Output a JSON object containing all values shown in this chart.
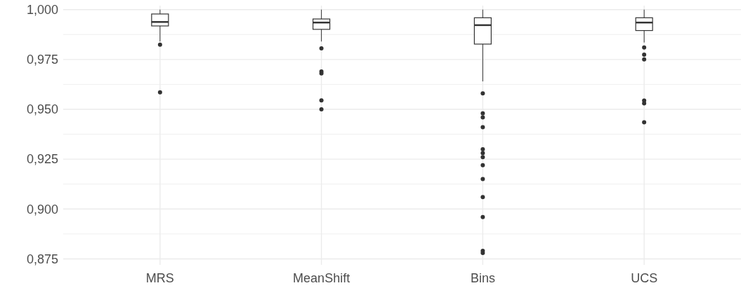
{
  "chart_data": {
    "type": "box",
    "categories": [
      "MRS",
      "MeanShift",
      "Bins",
      "UCS"
    ],
    "boxes": [
      {
        "low": 0.984,
        "q1": 0.9918,
        "median": 0.9938,
        "q3": 0.9978,
        "high": 1.0,
        "outliers": [
          0.9824,
          0.9585
        ]
      },
      {
        "low": 0.984,
        "q1": 0.9901,
        "median": 0.9935,
        "q3": 0.9953,
        "high": 1.0,
        "outliers": [
          0.9806,
          0.969,
          0.968,
          0.9545,
          0.95
        ]
      },
      {
        "low": 0.964,
        "q1": 0.9827,
        "median": 0.9922,
        "q3": 0.9959,
        "high": 1.0,
        "outliers": [
          0.958,
          0.948,
          0.946,
          0.941,
          0.93,
          0.928,
          0.926,
          0.922,
          0.915,
          0.906,
          0.896,
          0.879,
          0.878
        ]
      },
      {
        "low": 0.9835,
        "q1": 0.9895,
        "median": 0.9935,
        "q3": 0.9959,
        "high": 1.0,
        "outliers": [
          0.981,
          0.9774,
          0.975,
          0.9544,
          0.953,
          0.9435
        ]
      }
    ],
    "color": "#333333",
    "ylim": [
      0.872,
      1.002
    ],
    "yticks": [
      {
        "value": 0.875,
        "label": "0,875"
      },
      {
        "value": 0.8875,
        "label": null
      },
      {
        "value": 0.9,
        "label": "0,900"
      },
      {
        "value": 0.9125,
        "label": null
      },
      {
        "value": 0.925,
        "label": "0,925"
      },
      {
        "value": 0.9375,
        "label": null
      },
      {
        "value": 0.95,
        "label": "0,950"
      },
      {
        "value": 0.9625,
        "label": null
      },
      {
        "value": 0.975,
        "label": "0,975"
      },
      {
        "value": 0.9875,
        "label": null
      },
      {
        "value": 1.0,
        "label": "1,000"
      }
    ],
    "grid": true
  }
}
